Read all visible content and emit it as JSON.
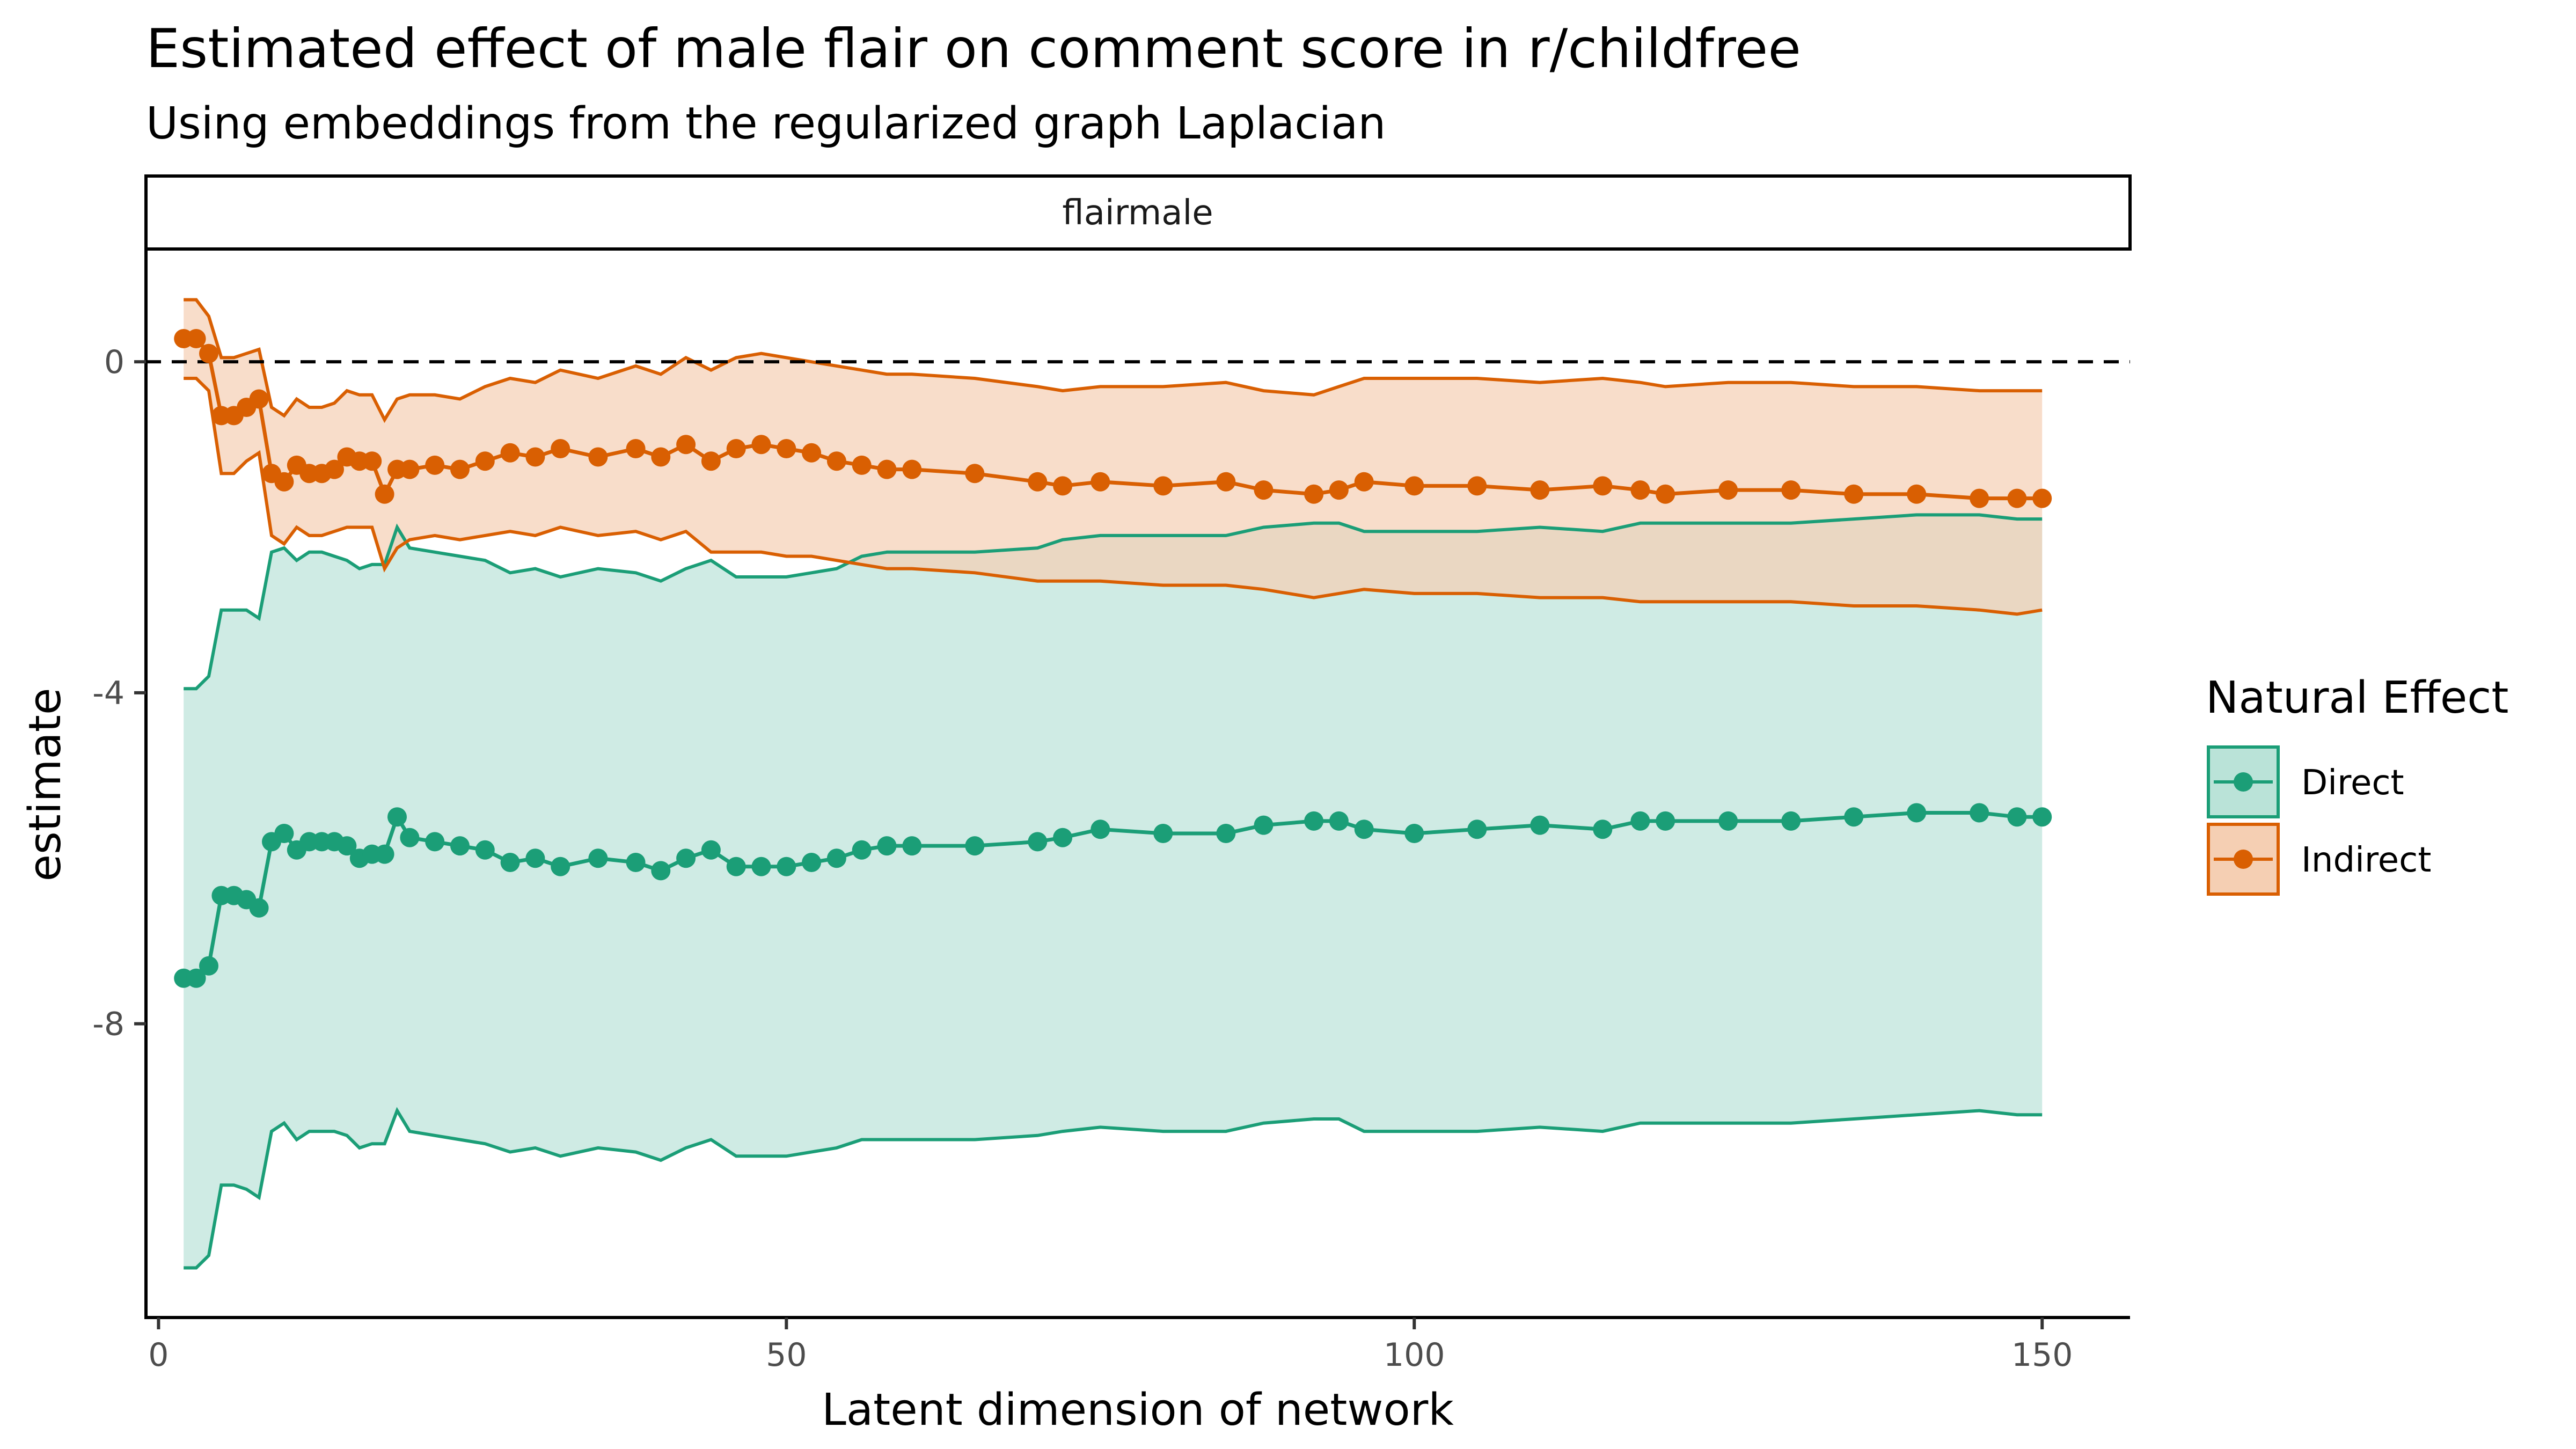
{
  "chart_data": {
    "type": "line",
    "title": "Estimated effect of male flair on comment score in r/childfree",
    "subtitle": "Using embeddings from the regularized graph Laplacian",
    "facet_label": "flairmale",
    "xlabel": "Latent dimension of network",
    "ylabel": "estimate",
    "xlim": [
      -1,
      157
    ],
    "ylim": [
      -11.55,
      1.35
    ],
    "x_ticks": [
      0,
      50,
      100,
      150
    ],
    "x_tick_labels": [
      "0",
      "50",
      "100",
      "150"
    ],
    "y_ticks": [
      0,
      -4,
      -8
    ],
    "y_tick_labels": [
      "0",
      "-4",
      "-8"
    ],
    "reference_line": {
      "y": 0,
      "style": "dashed"
    },
    "legend": {
      "title": "Natural Effect",
      "position": "right"
    },
    "grid": false,
    "series": [
      {
        "name": "Direct",
        "color": "#1b9e77",
        "fill": "#bae3d8",
        "x": [
          2,
          3,
          4,
          5,
          6,
          7,
          8,
          9,
          10,
          11,
          12,
          13,
          14,
          15,
          16,
          17,
          18,
          19,
          20,
          22,
          24,
          26,
          28,
          30,
          32,
          35,
          38,
          40,
          42,
          44,
          46,
          48,
          50,
          52,
          54,
          56,
          58,
          60,
          65,
          70,
          72,
          75,
          80,
          85,
          88,
          92,
          94,
          96,
          100,
          105,
          110,
          115,
          118,
          120,
          125,
          130,
          135,
          140,
          145,
          148,
          150
        ],
        "values": [
          -7.45,
          -7.45,
          -7.3,
          -6.45,
          -6.45,
          -6.5,
          -6.6,
          -5.8,
          -5.7,
          -5.9,
          -5.8,
          -5.8,
          -5.8,
          -5.85,
          -6.0,
          -5.95,
          -5.95,
          -5.5,
          -5.75,
          -5.8,
          -5.85,
          -5.9,
          -6.05,
          -6.0,
          -6.1,
          -6.0,
          -6.05,
          -6.15,
          -6.0,
          -5.9,
          -6.1,
          -6.1,
          -6.1,
          -6.05,
          -6.0,
          -5.9,
          -5.85,
          -5.85,
          -5.85,
          -5.8,
          -5.75,
          -5.65,
          -5.7,
          -5.7,
          -5.6,
          -5.55,
          -5.55,
          -5.65,
          -5.7,
          -5.65,
          -5.6,
          -5.65,
          -5.55,
          -5.55,
          -5.55,
          -5.55,
          -5.5,
          -5.45,
          -5.45,
          -5.5,
          -5.5
        ],
        "lower": [
          -10.95,
          -10.95,
          -10.8,
          -9.95,
          -9.95,
          -10.0,
          -10.1,
          -9.3,
          -9.2,
          -9.4,
          -9.3,
          -9.3,
          -9.3,
          -9.35,
          -9.5,
          -9.45,
          -9.45,
          -9.05,
          -9.3,
          -9.35,
          -9.4,
          -9.45,
          -9.55,
          -9.5,
          -9.6,
          -9.5,
          -9.55,
          -9.65,
          -9.5,
          -9.4,
          -9.6,
          -9.6,
          -9.6,
          -9.55,
          -9.5,
          -9.4,
          -9.4,
          -9.4,
          -9.4,
          -9.35,
          -9.3,
          -9.25,
          -9.3,
          -9.3,
          -9.2,
          -9.15,
          -9.15,
          -9.3,
          -9.3,
          -9.3,
          -9.25,
          -9.3,
          -9.2,
          -9.2,
          -9.2,
          -9.2,
          -9.15,
          -9.1,
          -9.05,
          -9.1,
          -9.1
        ],
        "upper": [
          -3.95,
          -3.95,
          -3.8,
          -3.0,
          -3.0,
          -3.0,
          -3.1,
          -2.3,
          -2.25,
          -2.4,
          -2.3,
          -2.3,
          -2.35,
          -2.4,
          -2.5,
          -2.45,
          -2.45,
          -2.0,
          -2.25,
          -2.3,
          -2.35,
          -2.4,
          -2.55,
          -2.5,
          -2.6,
          -2.5,
          -2.55,
          -2.65,
          -2.5,
          -2.4,
          -2.6,
          -2.6,
          -2.6,
          -2.55,
          -2.5,
          -2.35,
          -2.3,
          -2.3,
          -2.3,
          -2.25,
          -2.15,
          -2.1,
          -2.1,
          -2.1,
          -2.0,
          -1.95,
          -1.95,
          -2.05,
          -2.05,
          -2.05,
          -2.0,
          -2.05,
          -1.95,
          -1.95,
          -1.95,
          -1.95,
          -1.9,
          -1.85,
          -1.85,
          -1.9,
          -1.9
        ]
      },
      {
        "name": "Indirect",
        "color": "#d95f02",
        "fill": "#f5cfb3",
        "x": [
          2,
          3,
          4,
          5,
          6,
          7,
          8,
          9,
          10,
          11,
          12,
          13,
          14,
          15,
          16,
          17,
          18,
          19,
          20,
          22,
          24,
          26,
          28,
          30,
          32,
          35,
          38,
          40,
          42,
          44,
          46,
          48,
          50,
          52,
          54,
          56,
          58,
          60,
          65,
          70,
          72,
          75,
          80,
          85,
          88,
          92,
          94,
          96,
          100,
          105,
          110,
          115,
          118,
          120,
          125,
          130,
          135,
          140,
          145,
          148,
          150
        ],
        "values": [
          0.28,
          0.28,
          0.1,
          -0.65,
          -0.65,
          -0.55,
          -0.45,
          -1.35,
          -1.45,
          -1.25,
          -1.35,
          -1.35,
          -1.3,
          -1.15,
          -1.2,
          -1.2,
          -1.6,
          -1.3,
          -1.3,
          -1.25,
          -1.3,
          -1.2,
          -1.1,
          -1.15,
          -1.05,
          -1.15,
          -1.05,
          -1.15,
          -1.0,
          -1.2,
          -1.05,
          -1.0,
          -1.05,
          -1.1,
          -1.2,
          -1.25,
          -1.3,
          -1.3,
          -1.35,
          -1.45,
          -1.5,
          -1.45,
          -1.5,
          -1.45,
          -1.55,
          -1.6,
          -1.55,
          -1.45,
          -1.5,
          -1.5,
          -1.55,
          -1.5,
          -1.55,
          -1.6,
          -1.55,
          -1.55,
          -1.6,
          -1.6,
          -1.65,
          -1.65,
          -1.65
        ],
        "lower": [
          -0.2,
          -0.2,
          -0.35,
          -1.35,
          -1.35,
          -1.2,
          -1.1,
          -2.1,
          -2.2,
          -2.0,
          -2.1,
          -2.1,
          -2.05,
          -2.0,
          -2.0,
          -2.0,
          -2.5,
          -2.25,
          -2.15,
          -2.1,
          -2.15,
          -2.1,
          -2.05,
          -2.1,
          -2.0,
          -2.1,
          -2.05,
          -2.15,
          -2.05,
          -2.3,
          -2.3,
          -2.3,
          -2.35,
          -2.35,
          -2.4,
          -2.45,
          -2.5,
          -2.5,
          -2.55,
          -2.65,
          -2.65,
          -2.65,
          -2.7,
          -2.7,
          -2.75,
          -2.85,
          -2.8,
          -2.75,
          -2.8,
          -2.8,
          -2.85,
          -2.85,
          -2.9,
          -2.9,
          -2.9,
          -2.9,
          -2.95,
          -2.95,
          -3.0,
          -3.05,
          -3.0
        ],
        "upper": [
          0.75,
          0.75,
          0.55,
          0.05,
          0.05,
          0.1,
          0.15,
          -0.55,
          -0.65,
          -0.45,
          -0.55,
          -0.55,
          -0.5,
          -0.35,
          -0.4,
          -0.4,
          -0.7,
          -0.45,
          -0.4,
          -0.4,
          -0.45,
          -0.3,
          -0.2,
          -0.25,
          -0.1,
          -0.2,
          -0.05,
          -0.15,
          0.05,
          -0.1,
          0.05,
          0.1,
          0.05,
          0.0,
          -0.05,
          -0.1,
          -0.15,
          -0.15,
          -0.2,
          -0.3,
          -0.35,
          -0.3,
          -0.3,
          -0.25,
          -0.35,
          -0.4,
          -0.3,
          -0.2,
          -0.2,
          -0.2,
          -0.25,
          -0.2,
          -0.25,
          -0.3,
          -0.25,
          -0.25,
          -0.3,
          -0.3,
          -0.35,
          -0.35,
          -0.35
        ]
      }
    ]
  }
}
